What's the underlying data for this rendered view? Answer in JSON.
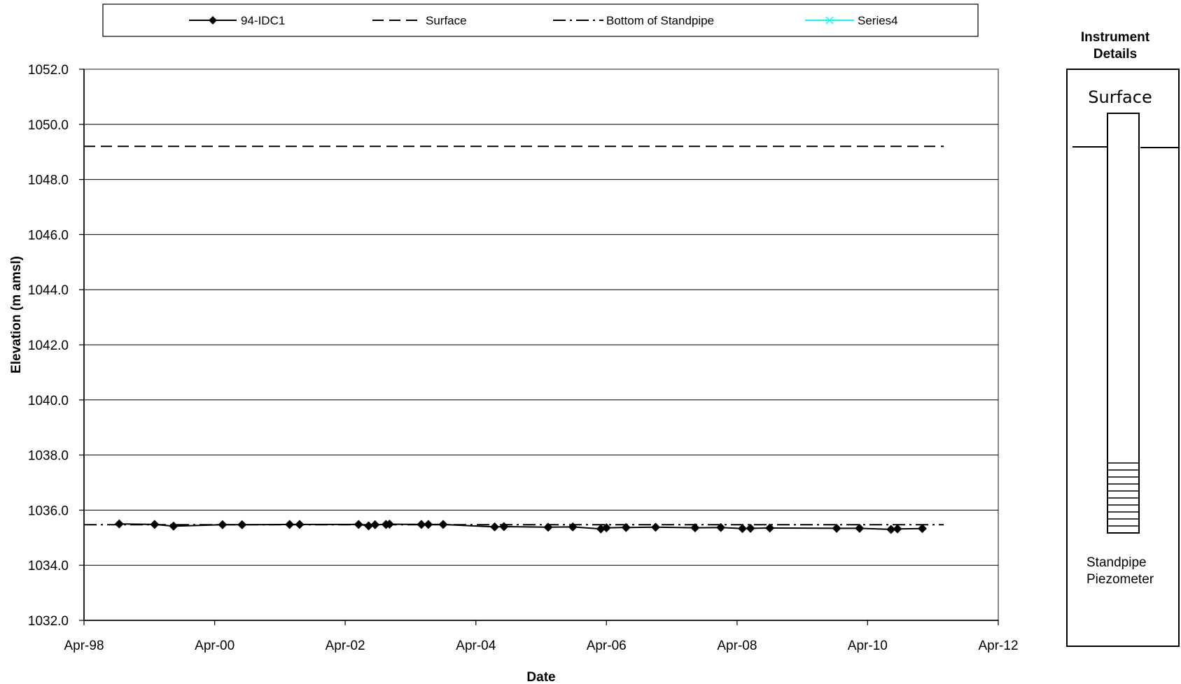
{
  "chart_data": {
    "type": "line",
    "xlabel": "Date",
    "ylabel": "Elevation (m amsl)",
    "x_axis": {
      "kind": "date",
      "range": [
        "1998-04-01",
        "2012-04-01"
      ],
      "ticks": [
        {
          "value": "1998-04-01",
          "label": "Apr-98"
        },
        {
          "value": "2000-04-01",
          "label": "Apr-00"
        },
        {
          "value": "2002-04-01",
          "label": "Apr-02"
        },
        {
          "value": "2004-04-01",
          "label": "Apr-04"
        },
        {
          "value": "2006-04-01",
          "label": "Apr-06"
        },
        {
          "value": "2008-04-01",
          "label": "Apr-08"
        },
        {
          "value": "2010-04-01",
          "label": "Apr-10"
        },
        {
          "value": "2012-04-01",
          "label": "Apr-12"
        }
      ]
    },
    "y_axis": {
      "range": [
        1032.0,
        1052.0
      ],
      "ticks": [
        "1032.0",
        "1034.0",
        "1036.0",
        "1038.0",
        "1040.0",
        "1042.0",
        "1044.0",
        "1046.0",
        "1048.0",
        "1050.0",
        "1052.0"
      ],
      "grid": true
    },
    "legend": {
      "position": "top",
      "entries": [
        "94-IDC1",
        "Surface",
        "Bottom of Standpipe",
        "Series4"
      ]
    },
    "series": [
      {
        "name": "94-IDC1",
        "color": "#000000",
        "style": "solid",
        "marker": "diamond",
        "points": [
          {
            "x": "1998-10-15",
            "y": 1035.5
          },
          {
            "x": "1999-05-01",
            "y": 1035.48
          },
          {
            "x": "1999-08-15",
            "y": 1035.42
          },
          {
            "x": "2000-05-15",
            "y": 1035.47
          },
          {
            "x": "2000-09-01",
            "y": 1035.47
          },
          {
            "x": "2001-05-25",
            "y": 1035.48
          },
          {
            "x": "2001-07-20",
            "y": 1035.48
          },
          {
            "x": "2002-06-15",
            "y": 1035.48
          },
          {
            "x": "2002-08-10",
            "y": 1035.43
          },
          {
            "x": "2002-09-15",
            "y": 1035.47
          },
          {
            "x": "2002-11-15",
            "y": 1035.48
          },
          {
            "x": "2002-12-05",
            "y": 1035.49
          },
          {
            "x": "2003-06-01",
            "y": 1035.48
          },
          {
            "x": "2003-07-10",
            "y": 1035.48
          },
          {
            "x": "2003-10-01",
            "y": 1035.48
          },
          {
            "x": "2004-07-15",
            "y": 1035.39
          },
          {
            "x": "2004-09-05",
            "y": 1035.4
          },
          {
            "x": "2005-05-10",
            "y": 1035.38
          },
          {
            "x": "2005-09-25",
            "y": 1035.39
          },
          {
            "x": "2006-03-01",
            "y": 1035.32
          },
          {
            "x": "2006-04-01",
            "y": 1035.36
          },
          {
            "x": "2006-07-20",
            "y": 1035.37
          },
          {
            "x": "2007-01-01",
            "y": 1035.38
          },
          {
            "x": "2007-08-10",
            "y": 1035.36
          },
          {
            "x": "2008-01-01",
            "y": 1035.37
          },
          {
            "x": "2008-05-01",
            "y": 1035.33
          },
          {
            "x": "2008-06-15",
            "y": 1035.34
          },
          {
            "x": "2008-10-01",
            "y": 1035.35
          },
          {
            "x": "2009-10-10",
            "y": 1035.34
          },
          {
            "x": "2010-02-15",
            "y": 1035.34
          },
          {
            "x": "2010-08-10",
            "y": 1035.3
          },
          {
            "x": "2010-09-15",
            "y": 1035.32
          },
          {
            "x": "2011-02-01",
            "y": 1035.33
          }
        ]
      },
      {
        "name": "Surface",
        "color": "#000000",
        "style": "dashed",
        "points": [
          {
            "x": "1998-04-01",
            "y": 1049.2
          },
          {
            "x": "2011-06-01",
            "y": 1049.2
          }
        ]
      },
      {
        "name": "Bottom of Standpipe",
        "color": "#000000",
        "style": "dash-dot",
        "points": [
          {
            "x": "1998-04-01",
            "y": 1035.47
          },
          {
            "x": "2011-06-01",
            "y": 1035.47
          }
        ]
      },
      {
        "name": "Series4",
        "color": "#00ffff",
        "style": "solid",
        "marker": "x",
        "points": []
      }
    ]
  },
  "instrument_panel": {
    "title_line1": "Instrument",
    "title_line2": "Details",
    "surface_label": "Surface",
    "caption_line1": "Standpipe",
    "caption_line2": "Piezometer"
  }
}
